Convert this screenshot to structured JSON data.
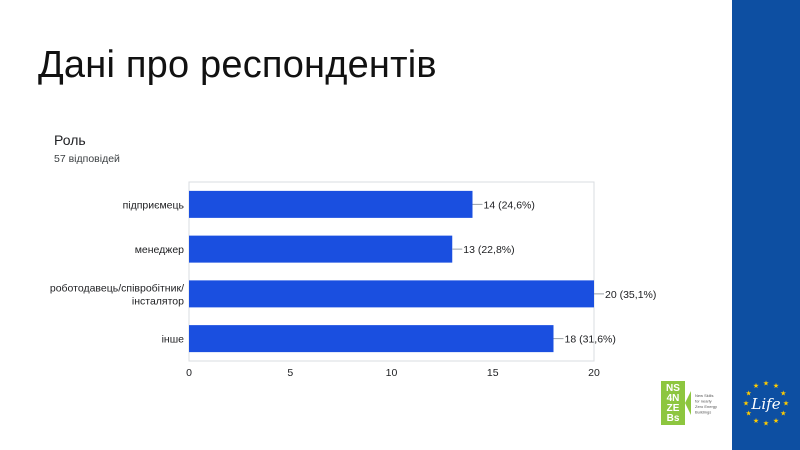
{
  "slide": {
    "title": "Дані про респондентів"
  },
  "chart_block": {
    "heading": "Роль",
    "subheading": "57 відповідей"
  },
  "chart_data": {
    "type": "bar",
    "orientation": "horizontal",
    "categories": [
      "підприємець",
      "менеджер",
      "роботодавець/співробітник/інсталятор",
      "інше"
    ],
    "category_lines": [
      [
        "підприємець"
      ],
      [
        "менеджер"
      ],
      [
        "роботодавець/співробітник/",
        "інсталятор"
      ],
      [
        "інше"
      ]
    ],
    "values": [
      14,
      13,
      20,
      18
    ],
    "data_labels": [
      "14 (24,6%)",
      "13 (22,8%)",
      "20 (35,1%)",
      "18 (31,6%)"
    ],
    "xlim": [
      0,
      20
    ],
    "xticks": [
      0,
      5,
      10,
      15,
      20
    ],
    "grid": false,
    "bar_color": "#1a4fe0"
  },
  "logos": {
    "ns_text": [
      "NS",
      "4N",
      "ZE",
      "Bs"
    ],
    "ns_tagline": [
      "New Skills",
      "for nearly",
      "Zero Energy",
      "Buildings"
    ],
    "eu_life_text": "Life"
  },
  "colors": {
    "eu_blue": "#0d4fa2",
    "ns_green": "#8dc63f",
    "star_yellow": "#ffcc00"
  }
}
